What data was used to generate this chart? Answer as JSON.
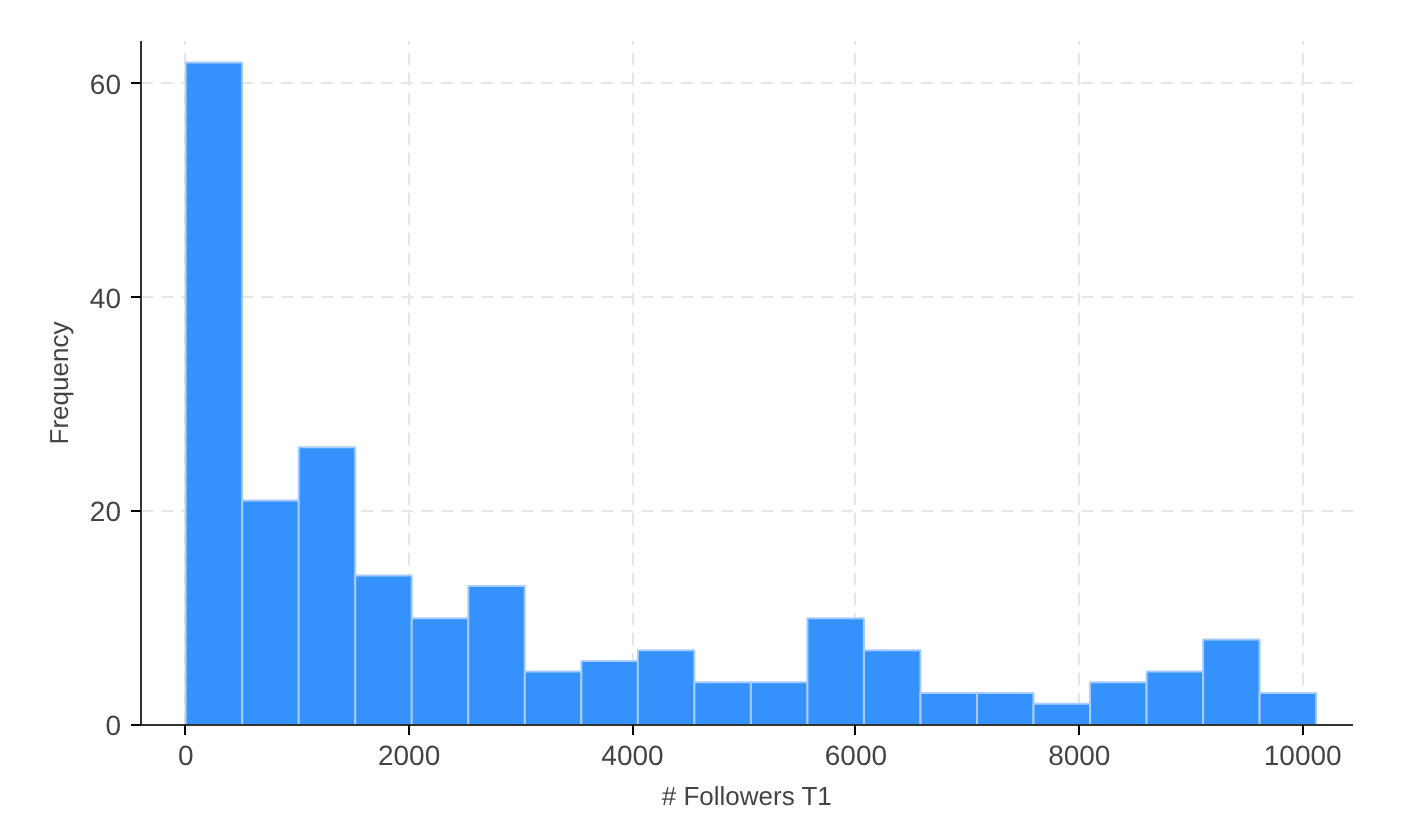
{
  "chart_data": {
    "type": "histogram",
    "xlabel": "# Followers T1",
    "ylabel": "Frequency",
    "bins": [
      0,
      506,
      1012,
      1518,
      2024,
      2530,
      3036,
      3542,
      4048,
      4554,
      5060,
      5566,
      6072,
      6578,
      7084,
      7590,
      8096,
      8602,
      9108,
      9614,
      10120
    ],
    "values": [
      62,
      21,
      26,
      14,
      10,
      13,
      5,
      6,
      7,
      4,
      4,
      10,
      7,
      3,
      3,
      2,
      4,
      5,
      8,
      3
    ],
    "color": "#3592fd",
    "xlim": [
      -400,
      10450
    ],
    "ylim": [
      0,
      64
    ],
    "xticks": [
      0,
      2000,
      4000,
      6000,
      8000,
      10000
    ],
    "yticks": [
      0,
      20,
      40,
      60
    ],
    "grid": true
  }
}
